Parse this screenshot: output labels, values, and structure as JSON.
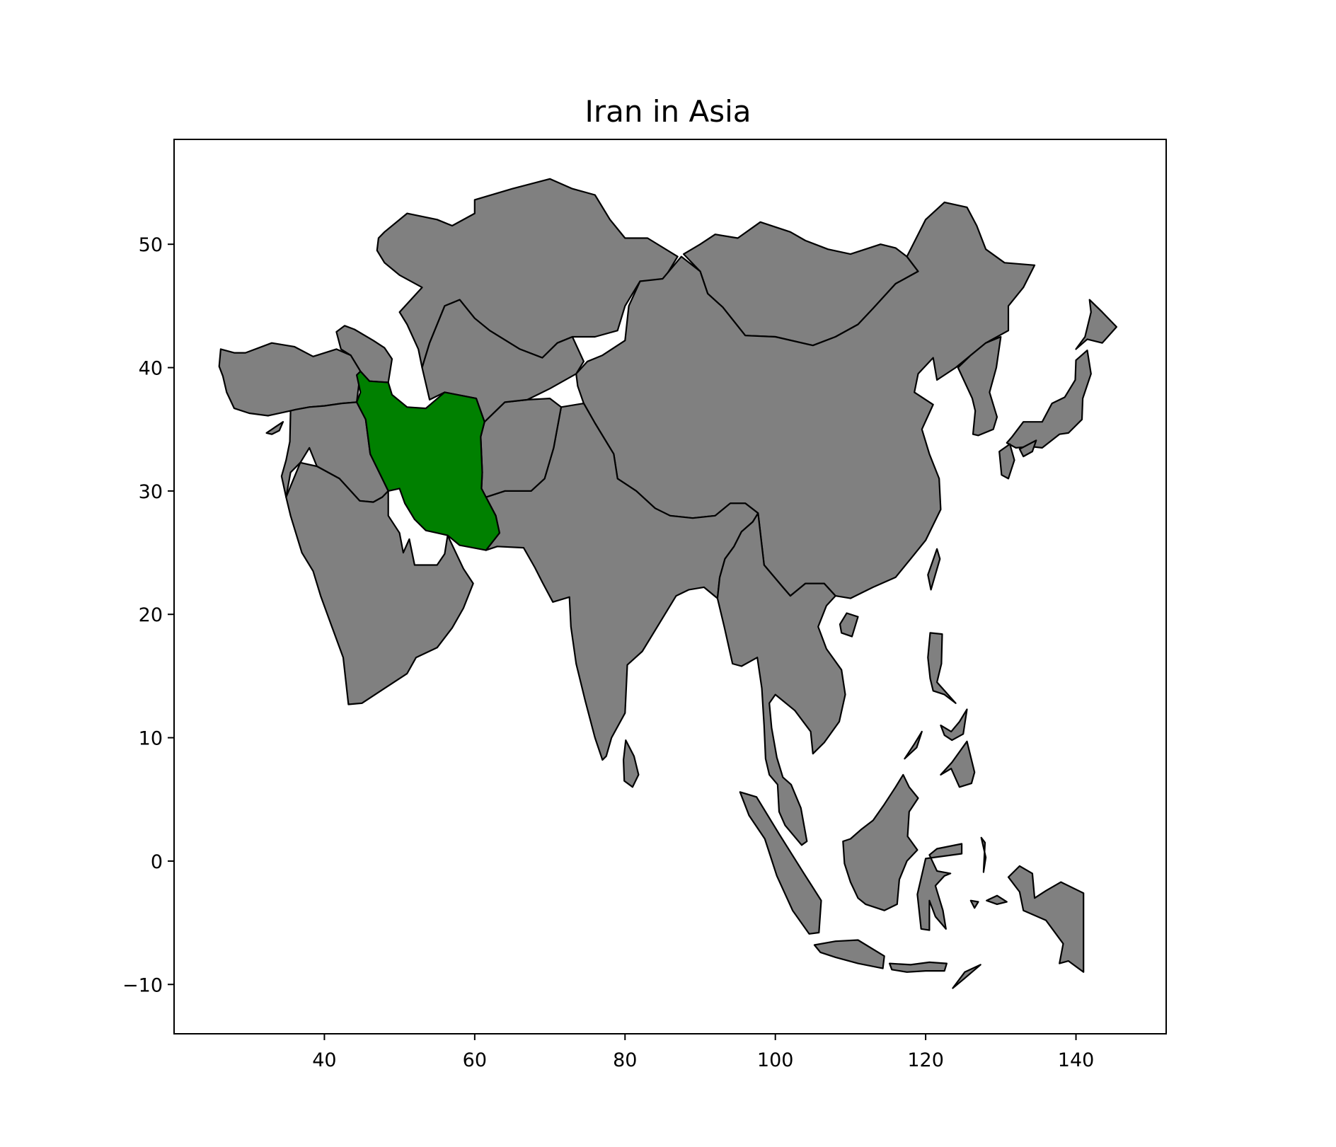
{
  "map": {
    "title": "Iran in Asia",
    "highlight_country": "Iran",
    "colors": {
      "highlight": "#008000",
      "other_countries": "#808080",
      "border": "#000000",
      "background": "#ffffff"
    },
    "xlim": [
      20,
      152
    ],
    "ylim": [
      -14,
      58.5
    ],
    "x_ticks": [
      40,
      60,
      80,
      100,
      120,
      140
    ],
    "y_ticks": [
      -10,
      0,
      10,
      20,
      30,
      40,
      50
    ],
    "x_tick_labels": [
      "40",
      "60",
      "80",
      "100",
      "120",
      "140"
    ],
    "y_tick_labels": [
      "−10",
      "0",
      "10",
      "20",
      "30",
      "40",
      "50"
    ]
  }
}
